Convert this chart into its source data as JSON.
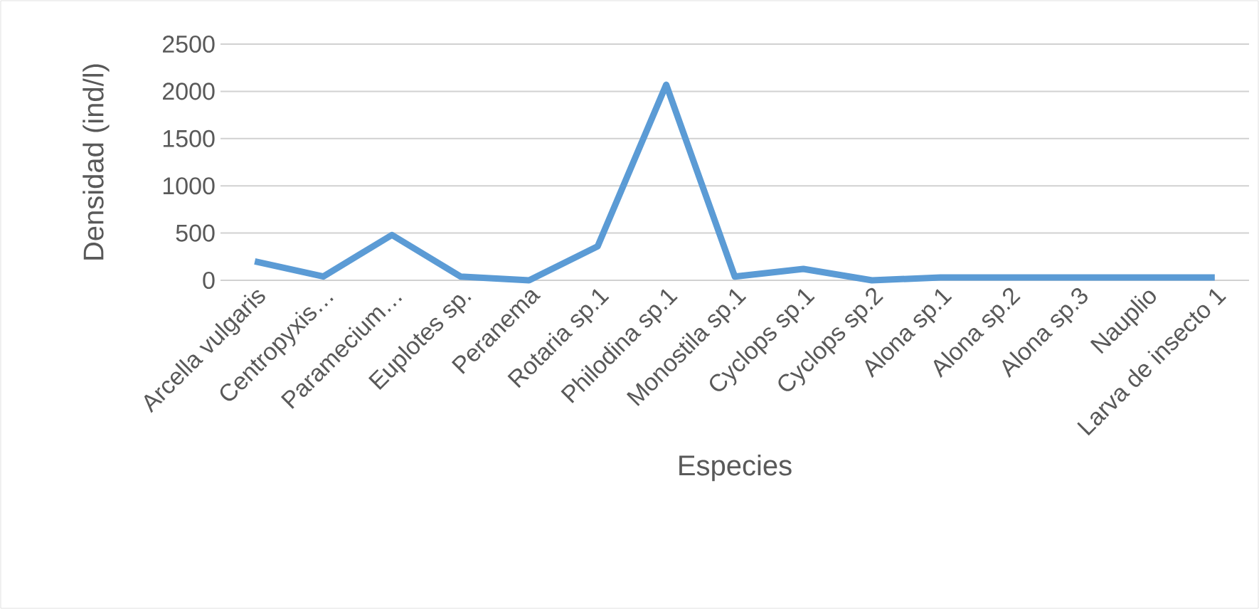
{
  "chart_data": {
    "type": "line",
    "xlabel": "Especies",
    "ylabel": "Densidad (ind/l)",
    "categories": [
      "Arcella vulgaris",
      "Centropyxis…",
      "Paramecium…",
      "Euplotes sp.",
      "Peranema",
      "Rotaria sp.1",
      "Philodina sp.1",
      "Monostila sp.1",
      "Cyclops sp.1",
      "Cyclops sp.2",
      "Alona sp.1",
      "Alona sp.2",
      "Alona sp.3",
      "Nauplio",
      "Larva de insecto 1"
    ],
    "series": [
      {
        "color": "#5b9bd5",
        "values": [
          200,
          40,
          480,
          40,
          0,
          360,
          2070,
          40,
          120,
          0,
          30,
          30,
          30,
          30,
          30
        ]
      }
    ],
    "ylim": [
      0,
      2500
    ],
    "yticks": [
      0,
      500,
      1000,
      1500,
      2000,
      2500
    ],
    "grid": "y",
    "marker": "none",
    "line_style": "solid"
  }
}
